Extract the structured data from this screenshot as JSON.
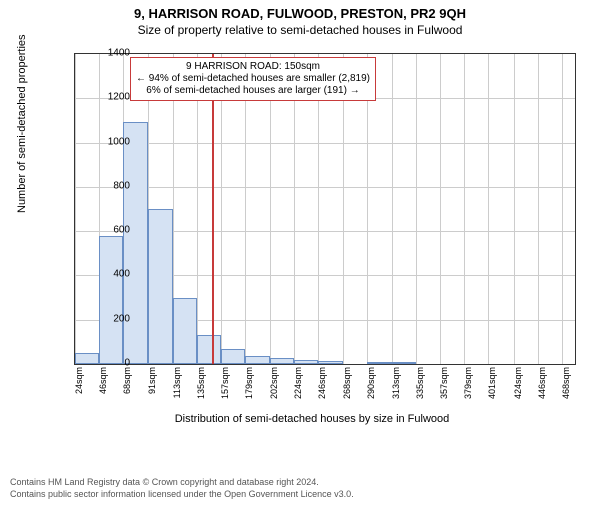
{
  "title_main": "9, HARRISON ROAD, FULWOOD, PRESTON, PR2 9QH",
  "title_sub": "Size of property relative to semi-detached houses in Fulwood",
  "ylabel": "Number of semi-detached properties",
  "xlabel": "Distribution of semi-detached houses by size in Fulwood",
  "annotation": {
    "line1": "9 HARRISON ROAD: 150sqm",
    "line2": "← 94% of semi-detached houses are smaller (2,819)",
    "line3": "6% of semi-detached houses are larger (191) →"
  },
  "chart": {
    "type": "histogram",
    "ylim": [
      0,
      1400
    ],
    "ytick_step": 200,
    "xlim": [
      24,
      480
    ],
    "x_tick_labels": [
      "24sqm",
      "46sqm",
      "68sqm",
      "91sqm",
      "113sqm",
      "135sqm",
      "157sqm",
      "179sqm",
      "202sqm",
      "224sqm",
      "246sqm",
      "268sqm",
      "290sqm",
      "313sqm",
      "335sqm",
      "357sqm",
      "379sqm",
      "401sqm",
      "424sqm",
      "446sqm",
      "468sqm"
    ],
    "x_tick_positions": [
      24,
      46,
      68,
      91,
      113,
      135,
      157,
      179,
      202,
      224,
      246,
      268,
      290,
      313,
      335,
      357,
      379,
      401,
      424,
      446,
      468
    ],
    "bar_fill": "#d5e2f3",
    "bar_stroke": "#6a8fc5",
    "grid_color": "#cccccc",
    "background": "#ffffff",
    "vline_x": 150,
    "vline_color": "#c73a3a",
    "bars": [
      {
        "x0": 24,
        "x1": 46,
        "y": 50
      },
      {
        "x0": 46,
        "x1": 68,
        "y": 580
      },
      {
        "x0": 68,
        "x1": 91,
        "y": 1095
      },
      {
        "x0": 91,
        "x1": 113,
        "y": 700
      },
      {
        "x0": 113,
        "x1": 135,
        "y": 300
      },
      {
        "x0": 135,
        "x1": 157,
        "y": 130
      },
      {
        "x0": 157,
        "x1": 179,
        "y": 70
      },
      {
        "x0": 179,
        "x1": 202,
        "y": 38
      },
      {
        "x0": 202,
        "x1": 224,
        "y": 28
      },
      {
        "x0": 224,
        "x1": 246,
        "y": 20
      },
      {
        "x0": 246,
        "x1": 268,
        "y": 12
      },
      {
        "x0": 268,
        "x1": 290,
        "y": 0
      },
      {
        "x0": 290,
        "x1": 313,
        "y": 10
      },
      {
        "x0": 313,
        "x1": 335,
        "y": 8
      },
      {
        "x0": 335,
        "x1": 357,
        "y": 0
      },
      {
        "x0": 357,
        "x1": 379,
        "y": 0
      },
      {
        "x0": 379,
        "x1": 401,
        "y": 0
      },
      {
        "x0": 401,
        "x1": 424,
        "y": 0
      },
      {
        "x0": 424,
        "x1": 446,
        "y": 0
      },
      {
        "x0": 446,
        "x1": 468,
        "y": 0
      }
    ]
  },
  "footer": {
    "l1": "Contains HM Land Registry data © Crown copyright and database right 2024.",
    "l2": "Contains public sector information licensed under the Open Government Licence v3.0."
  }
}
